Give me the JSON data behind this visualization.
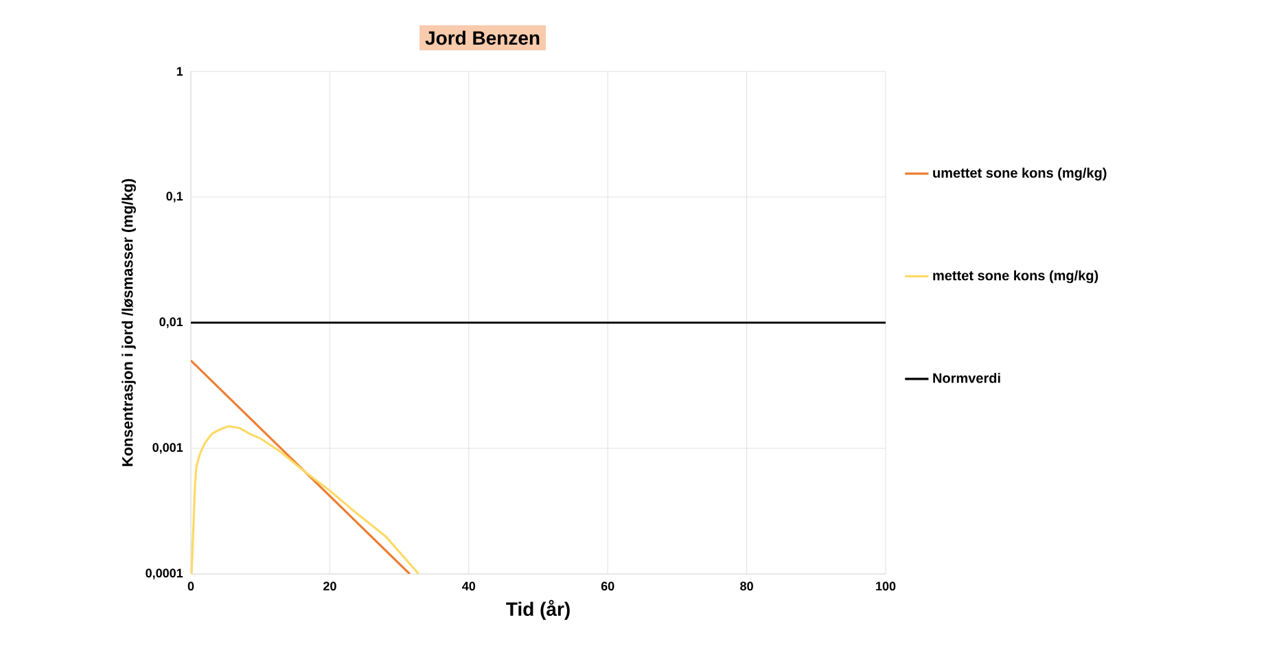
{
  "chart_data": {
    "type": "line",
    "title": "Jord Benzen",
    "xlabel": "Tid (år)",
    "ylabel": "Konsentrasjon i jord /løsmasser (mg/kg)",
    "log": "y",
    "grid": true,
    "legend": "right",
    "xlim": [
      0,
      100
    ],
    "xticks": [
      0,
      20,
      40,
      60,
      80,
      100
    ],
    "ylim": [
      0.0001,
      1
    ],
    "yticks": [
      {
        "value": 0.0001,
        "label": "0,0001"
      },
      {
        "value": 0.001,
        "label": "0,001"
      },
      {
        "value": 0.01,
        "label": "0,01"
      },
      {
        "value": 0.1,
        "label": "0,1"
      },
      1
    ],
    "series": [
      {
        "name": "umettet sone kons (mg/kg)",
        "color": "#ed7d31",
        "x": [
          0,
          31.5
        ],
        "values": [
          0.005,
          0.0001
        ]
      },
      {
        "name": "mettet sone kons (mg/kg)",
        "color": "#ffd966",
        "x": [
          0.1,
          0.6,
          0.8,
          1.3,
          2,
          3,
          4,
          5.4,
          7,
          8.5,
          10,
          13,
          16,
          20,
          24,
          28,
          32.8
        ],
        "values": [
          0.0001,
          0.00052,
          0.00072,
          0.0009,
          0.0011,
          0.0013,
          0.0014,
          0.0015,
          0.00145,
          0.0013,
          0.0012,
          0.00093,
          0.00068,
          0.00046,
          0.0003,
          0.0002,
          0.0001
        ]
      },
      {
        "name": "Normverdi",
        "color": "#000000",
        "x": [
          0,
          100
        ],
        "values": [
          0.01,
          0.01
        ]
      }
    ]
  }
}
